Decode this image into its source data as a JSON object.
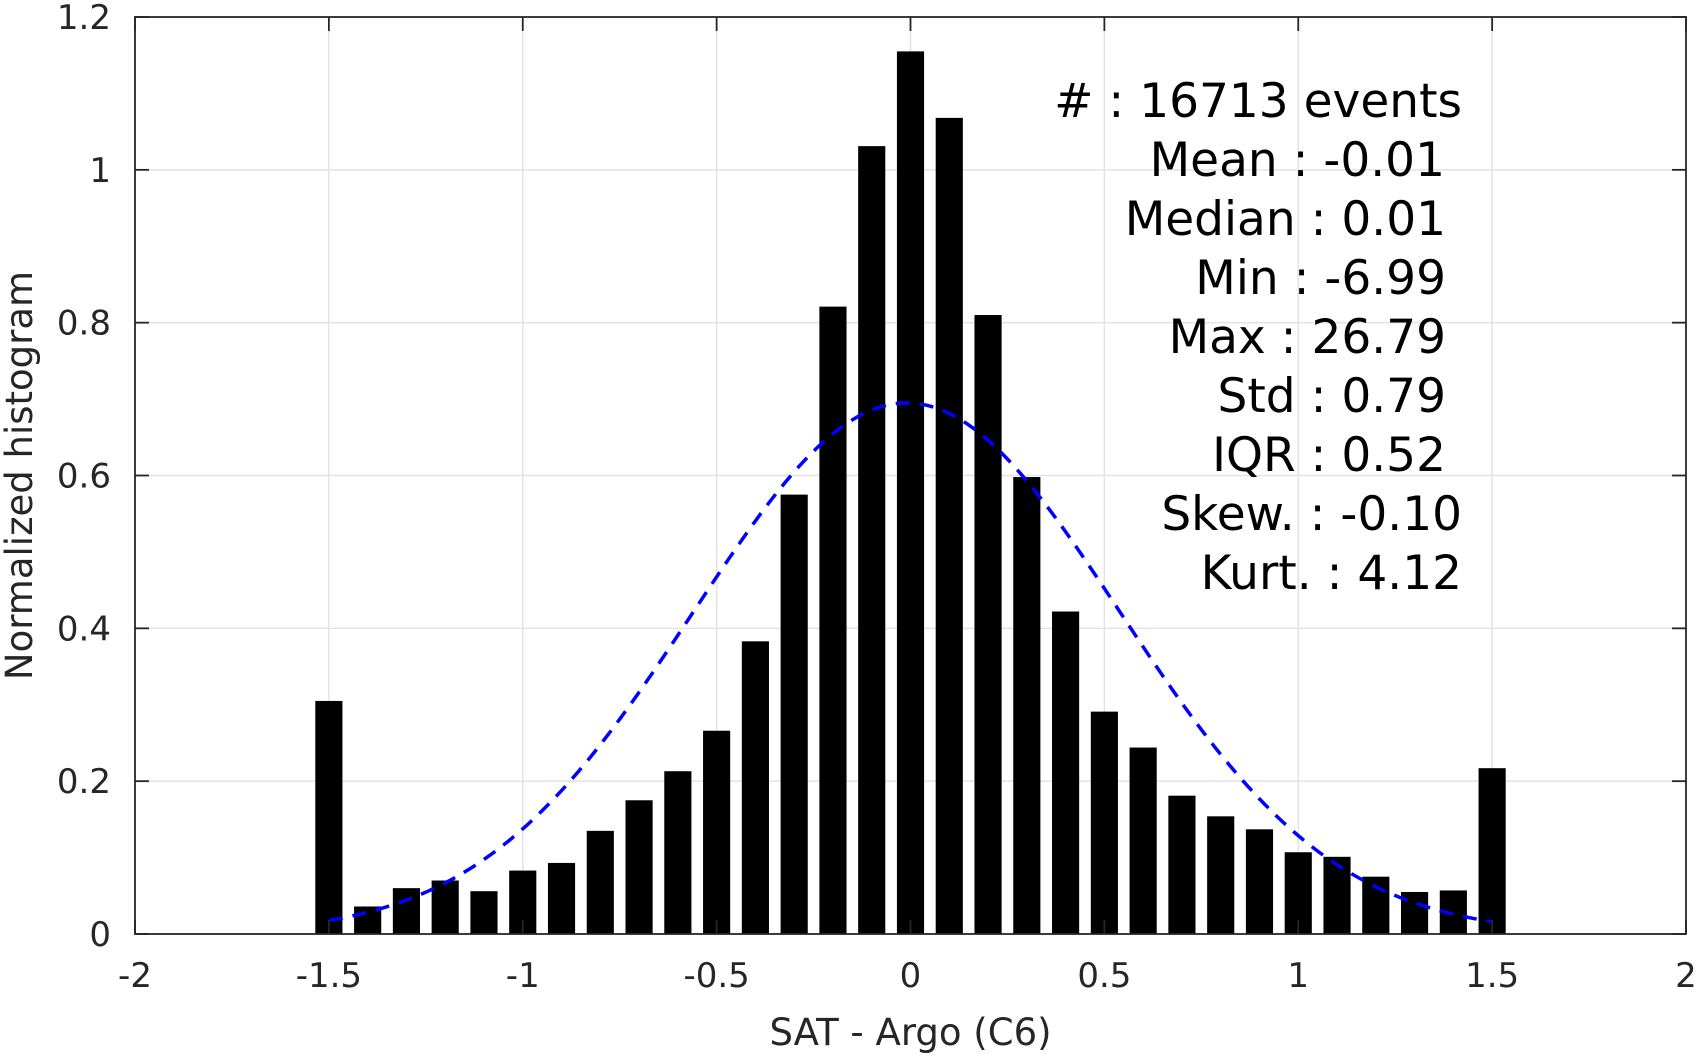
{
  "chart_data": {
    "type": "bar",
    "xlabel": "SAT - Argo (C6)",
    "ylabel": "Normalized histogram",
    "xlim": [
      -2,
      2
    ],
    "ylim": [
      0,
      1.2
    ],
    "grid": true,
    "xticks": [
      -2,
      -1.5,
      -1,
      -0.5,
      0,
      0.5,
      1,
      1.5,
      2
    ],
    "xtick_labels": [
      "-2",
      "-1.5",
      "-1",
      "-0.5",
      "0",
      "0.5",
      "1",
      "1.5",
      "2"
    ],
    "yticks": [
      0,
      0.2,
      0.4,
      0.6,
      0.8,
      1,
      1.2
    ],
    "ytick_labels": [
      "0",
      "0.2",
      "0.4",
      "0.6",
      "0.8",
      "1",
      "1.2"
    ],
    "bar_width": 0.07,
    "series": [
      {
        "type": "bar",
        "color": "#000000",
        "x": [
          -1.5,
          -1.4,
          -1.3,
          -1.2,
          -1.1,
          -1.0,
          -0.9,
          -0.8,
          -0.7,
          -0.6,
          -0.5,
          -0.4,
          -0.3,
          -0.2,
          -0.1,
          0.0,
          0.1,
          0.2,
          0.3,
          0.4,
          0.5,
          0.6,
          0.7,
          0.8,
          0.9,
          1.0,
          1.1,
          1.2,
          1.3,
          1.4,
          1.5
        ],
        "values": [
          0.305,
          0.036,
          0.06,
          0.07,
          0.056,
          0.083,
          0.093,
          0.135,
          0.175,
          0.213,
          0.266,
          0.383,
          0.575,
          0.821,
          1.031,
          1.155,
          1.068,
          0.81,
          0.598,
          0.422,
          0.291,
          0.244,
          0.181,
          0.154,
          0.137,
          0.107,
          0.101,
          0.075,
          0.055,
          0.057,
          0.217
        ]
      },
      {
        "type": "line",
        "style": "dashed",
        "color": "#0000ff",
        "x_range": [
          -1.5,
          1.5
        ],
        "gaussian": {
          "amplitude": 0.695,
          "mean": -0.01,
          "std": 0.55
        }
      }
    ],
    "annotations": [
      "#  : 16713 events",
      "Mean : -0.01",
      "Median : 0.01",
      "Min : -6.99",
      "Max : 26.79",
      "Std : 0.79",
      "IQR : 0.52",
      "Skew. : -0.10",
      "Kurt. : 4.12"
    ]
  }
}
